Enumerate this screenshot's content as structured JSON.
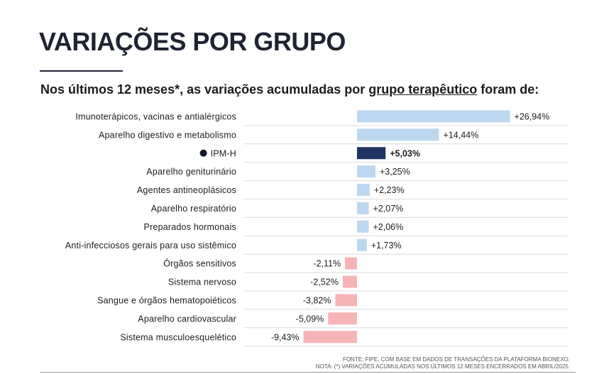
{
  "page": {
    "title": "VARIAÇÕES POR GRUPO",
    "subtitle_pre": "Nos últimos 12 meses*, as variações acumuladas por ",
    "subtitle_link": "grupo terapêutico",
    "subtitle_post": " foram de:",
    "footnote_source": "FONTE: FIPE, COM BASE EM DADOS DE TRANSAÇÕES DA PLATAFORMA BIONEXO.",
    "footnote_note": "NOTA: (*) VARIAÇÕES ACUMULADAS NOS ÚLTIMOS 12 MESES ENCERRADOS EM ABRIL/2025."
  },
  "colors": {
    "positive": "#bdd7f0",
    "negative": "#f7b4b6",
    "highlight": "#1f3460",
    "text": "#1c1c1c"
  },
  "chart_data": {
    "type": "bar",
    "orientation": "horizontal",
    "categories": [
      "Imunoterápicos, vacinas e antialérgicos",
      "Aparelho digestivo e metabolismo",
      "IPM-H",
      "Aparelho geniturinário",
      "Agentes antineoplásicos",
      "Aparelho respiratório",
      "Preparados hormonais",
      "Anti-infecciosos gerais para uso sistêmico",
      "Órgãos sensitivos",
      "Sistema nervoso",
      "Sangue e órgãos hematopoiéticos",
      "Aparelho cardiovascular",
      "Sistema musculoesquelético"
    ],
    "values": [
      26.94,
      14.44,
      5.03,
      3.25,
      2.23,
      2.07,
      2.06,
      1.73,
      -2.11,
      -2.52,
      -3.82,
      -5.09,
      -9.43
    ],
    "labels": [
      "+26,94%",
      "+14,44%",
      "+5,03%",
      "+3,25%",
      "+2,23%",
      "+2,07%",
      "+2,06%",
      "+1,73%",
      "-2,11%",
      "-2,52%",
      "-3,82%",
      "-5,09%",
      "-9,43%"
    ],
    "highlight": "IPM-H",
    "xlim": [
      -10,
      28
    ],
    "grid": "horizontal row separators"
  }
}
